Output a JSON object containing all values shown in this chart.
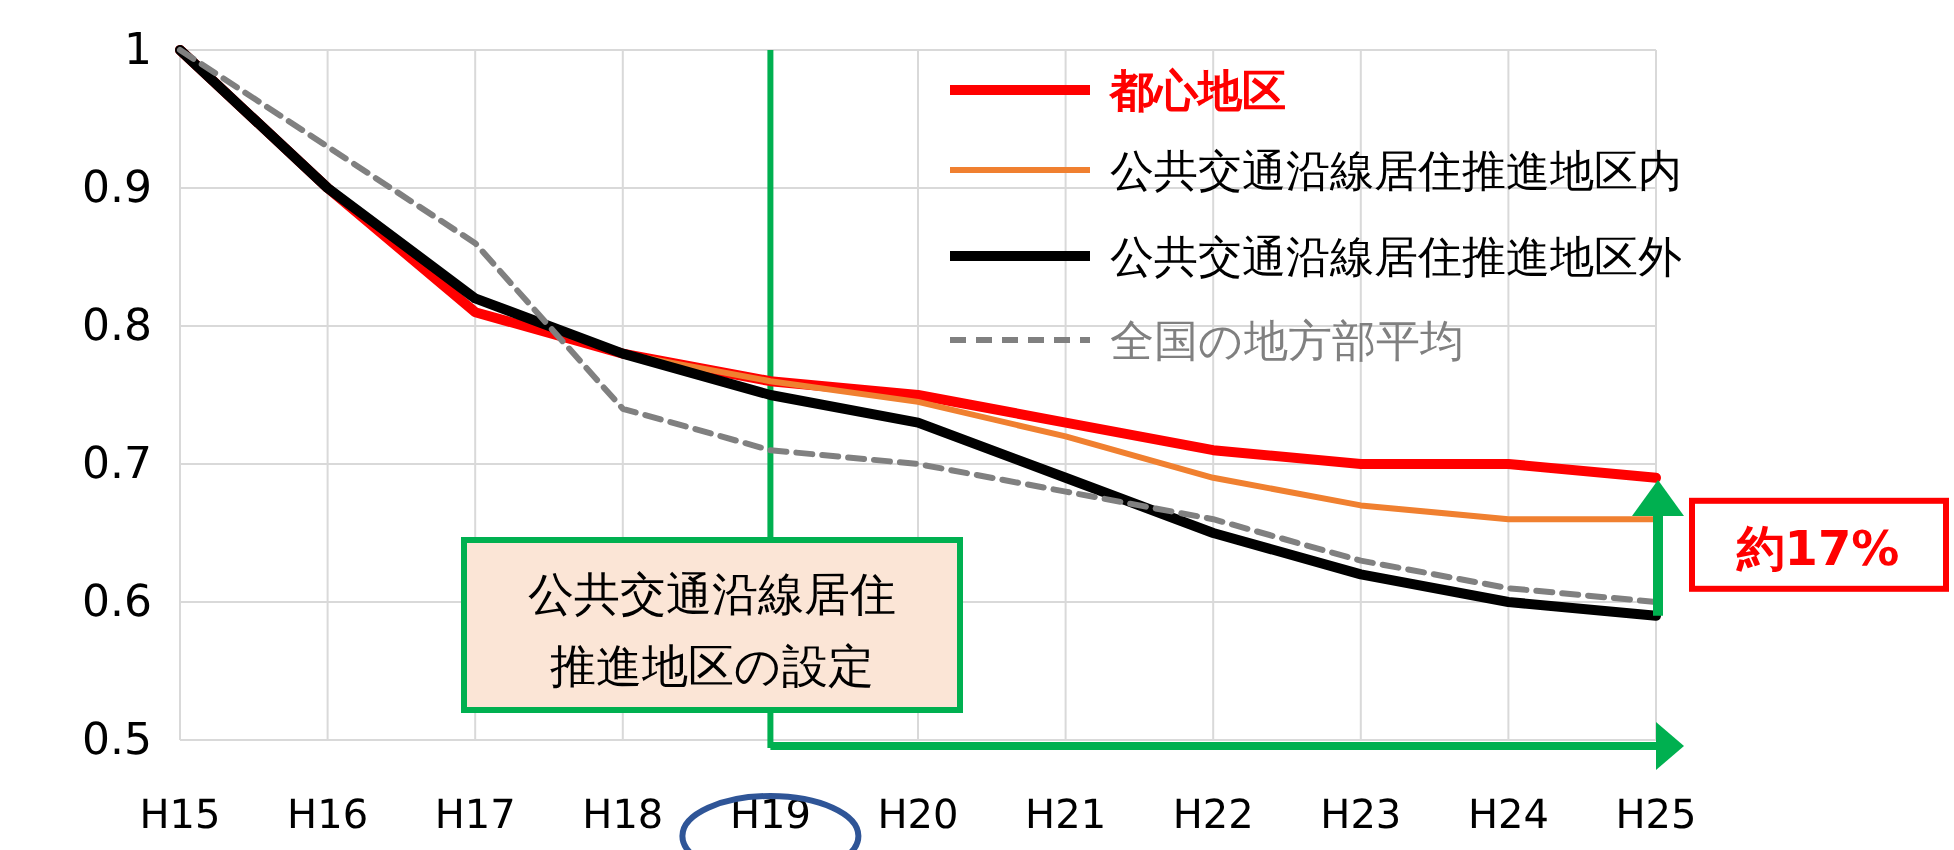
{
  "chart_data": {
    "type": "line",
    "categories": [
      "H15",
      "H16",
      "H17",
      "H18",
      "H19",
      "H20",
      "H21",
      "H22",
      "H23",
      "H24",
      "H25"
    ],
    "series": [
      {
        "name": "都心地区",
        "color": "#ff0000",
        "values": [
          1,
          0.9,
          0.81,
          0.78,
          0.76,
          0.75,
          0.73,
          0.71,
          0.7,
          0.7,
          0.69
        ]
      },
      {
        "name": "公共交通沿線居住推進地区内",
        "color": "#f08030",
        "values": [
          1,
          0.9,
          0.82,
          0.78,
          0.76,
          0.745,
          0.72,
          0.69,
          0.67,
          0.66,
          0.66
        ]
      },
      {
        "name": "公共交通沿線居住推進地区外",
        "color": "#000000",
        "values": [
          1,
          0.9,
          0.82,
          0.78,
          0.75,
          0.73,
          0.69,
          0.65,
          0.62,
          0.6,
          0.59
        ]
      },
      {
        "name": "全国の地方部平均",
        "color": "#808080",
        "line_style": "dashed",
        "values": [
          1,
          0.93,
          0.86,
          0.74,
          0.71,
          0.7,
          0.68,
          0.66,
          0.63,
          0.61,
          0.6
        ]
      }
    ],
    "ylim": [
      0.5,
      1
    ],
    "yticks": [
      0.5,
      0.6,
      0.7,
      0.8,
      0.9,
      1
    ],
    "grid": true,
    "legend": "top right",
    "line_style": "solid",
    "marker": "none",
    "ref_lines": [
      {
        "axis": "x",
        "value": "H19",
        "color": "#00b050"
      }
    ],
    "annotations": [
      "公共交通沿線居住推進地区の設定",
      "約17%"
    ]
  }
}
